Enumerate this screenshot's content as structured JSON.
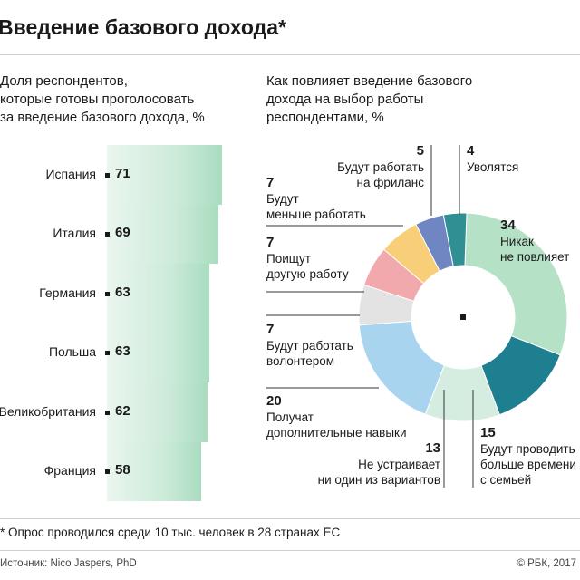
{
  "title": "Введение базового дохода*",
  "left_panel": {
    "subtitle": "Доля респондентов,\nкоторые готовы проголосовать\nза введение базового дохода, %"
  },
  "right_panel": {
    "subtitle": "Как повлияет введение базового\nдохода на выбор работы\nреспондентами, %"
  },
  "footnote": "* Опрос проводился среди 10 тыс. человек в 28 странах ЕС",
  "source": "Источник: Nico Jaspers, PhD",
  "copyright": "© РБК, 2017",
  "chart_data": [
    {
      "type": "bar",
      "orientation": "horizontal",
      "title": "Доля респондентов, которые готовы проголосовать за введение базового дохода, %",
      "categories": [
        "Испания",
        "Италия",
        "Германия",
        "Польша",
        "Великобритания",
        "Франция"
      ],
      "values": [
        71,
        69,
        63,
        63,
        62,
        58
      ],
      "colors": {
        "bar": "#bfe6cf",
        "bar_dark": "#a9dcc0"
      }
    },
    {
      "type": "pie",
      "variant": "donut",
      "title": "Как повлияет введение базового дохода на выбор работы респондентами, %",
      "slices": [
        {
          "label": "Никак\nне повлияет",
          "value": 34,
          "color": "#b5e1c6"
        },
        {
          "label": "Будут проводить\nбольше времени\nс семьей",
          "value": 15,
          "color": "#1d7f8f"
        },
        {
          "label": "Не устраивает\nни один из вариантов",
          "value": 13,
          "color": "#d4ede0"
        },
        {
          "label": "Получат\nдополнительные навыки",
          "value": 20,
          "color": "#a9d4ef"
        },
        {
          "label": "Будут работать\nволонтером",
          "value": 7,
          "color": "#e3e3e3"
        },
        {
          "label": "Поищут\nдругую работу",
          "value": 7,
          "color": "#f2a9ae"
        },
        {
          "label": "Будут\nменьше работать",
          "value": 7,
          "color": "#f8cf78"
        },
        {
          "label": "Будут работать\nна фриланс",
          "value": 5,
          "color": "#6f86c2"
        },
        {
          "label": "Уволятся",
          "value": 4,
          "color": "#2f8f93"
        }
      ]
    }
  ]
}
